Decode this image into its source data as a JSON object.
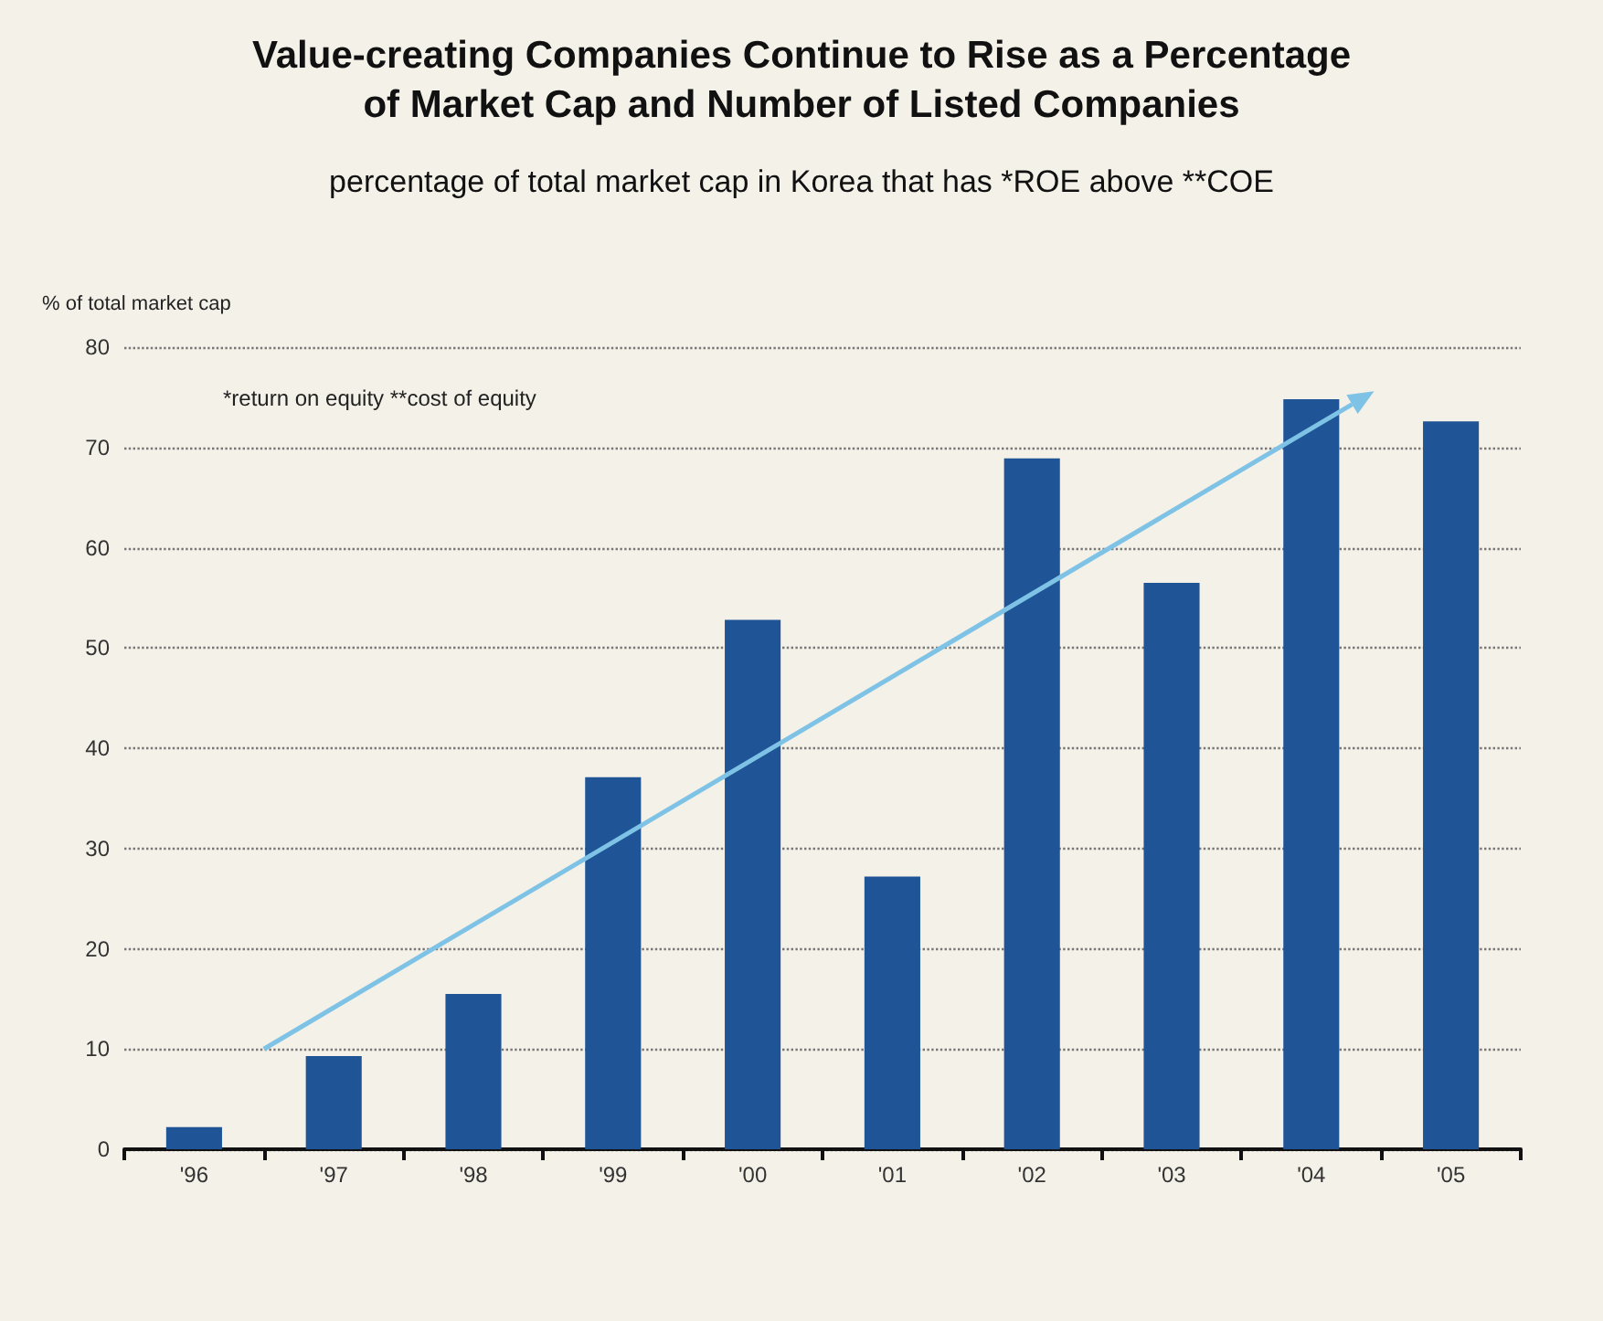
{
  "chart_data": {
    "type": "bar",
    "title": "Value-creating Companies Continue to Rise as a Percentage\nof Market Cap and Number of Listed Companies",
    "subtitle": "percentage of total market cap in Korea that has *ROE above **COE",
    "ylabel": "% of total market cap",
    "categories": [
      "'96",
      "'97",
      "'98",
      "'99",
      "'00",
      "'01",
      "'02",
      "'03",
      "'04",
      "'05"
    ],
    "series": [
      {
        "color": "#1f5596",
        "values": [
          2.2,
          9.3,
          15.5,
          37.1,
          52.8,
          27.2,
          68.9,
          56.5,
          74.8,
          72.6
        ]
      }
    ],
    "ylim": [
      0,
      80
    ],
    "yticks": [
      0,
      10,
      20,
      30,
      40,
      50,
      60,
      70,
      80
    ],
    "grid": "y",
    "annotations": [
      "*return on equity **cost of equity"
    ]
  }
}
